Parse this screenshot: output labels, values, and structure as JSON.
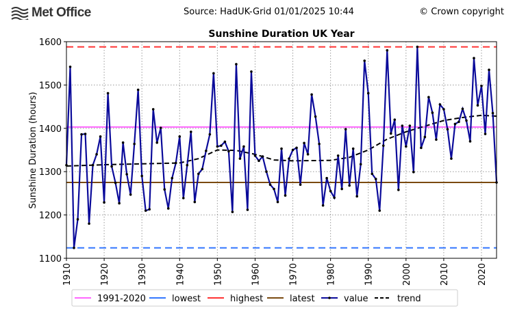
{
  "header": {
    "logo_text": "Met Office",
    "source": "Source: HadUK-Grid 01/01/2025 10:44",
    "copyright": "© Crown copyright"
  },
  "chart_data": {
    "type": "line",
    "title": "Sunshine Duration UK Year",
    "xlabel": "",
    "ylabel": "Sunshine Duration (hours)",
    "xlim": [
      1910,
      2024
    ],
    "ylim": [
      1100,
      1600
    ],
    "xticks": [
      "1910",
      "1920",
      "1930",
      "1940",
      "1950",
      "1960",
      "1970",
      "1980",
      "1990",
      "2000",
      "2010",
      "2020"
    ],
    "yticks": [
      "1100",
      "1200",
      "1300",
      "1400",
      "1500",
      "1600"
    ],
    "grid": true,
    "legend_placement": "bottom",
    "reference_lines": [
      {
        "name": "1991-2020",
        "value": 1403,
        "color": "#ff66ff",
        "style": "solid"
      },
      {
        "name": "lowest",
        "value": 1124,
        "color": "#3377ff",
        "style": "dashed"
      },
      {
        "name": "highest",
        "value": 1588,
        "color": "#ff3333",
        "style": "dashed"
      },
      {
        "name": "latest",
        "value": 1275,
        "color": "#7a4a10",
        "style": "solid"
      }
    ],
    "series": [
      {
        "name": "value",
        "color": "#0a0a9a",
        "x_start": 1910,
        "values": [
          1315,
          1542,
          1124,
          1190,
          1386,
          1387,
          1180,
          1315,
          1340,
          1381,
          1229,
          1481,
          1312,
          1274,
          1227,
          1367,
          1294,
          1247,
          1364,
          1489,
          1290,
          1210,
          1213,
          1444,
          1367,
          1401,
          1259,
          1215,
          1285,
          1320,
          1381,
          1239,
          1315,
          1392,
          1230,
          1295,
          1306,
          1348,
          1386,
          1527,
          1358,
          1360,
          1369,
          1347,
          1207,
          1548,
          1330,
          1358,
          1212,
          1531,
          1337,
          1325,
          1335,
          1300,
          1270,
          1260,
          1230,
          1353,
          1245,
          1330,
          1350,
          1355,
          1270,
          1366,
          1340,
          1478,
          1427,
          1364,
          1222,
          1285,
          1255,
          1240,
          1337,
          1260,
          1398,
          1268,
          1353,
          1243,
          1317,
          1556,
          1481,
          1295,
          1283,
          1210,
          1360,
          1580,
          1388,
          1420,
          1258,
          1406,
          1358,
          1406,
          1299,
          1588,
          1355,
          1380,
          1472,
          1436,
          1374,
          1455,
          1444,
          1398,
          1330,
          1410,
          1415,
          1445,
          1418,
          1370,
          1562,
          1453,
          1498,
          1387,
          1535,
          1435,
          1275
        ]
      },
      {
        "name": "trend",
        "color": "#000000",
        "x": [
          1910,
          1920,
          1930,
          1940,
          1945,
          1950,
          1955,
          1960,
          1965,
          1970,
          1980,
          1985,
          1990,
          1995,
          2000,
          2005,
          2010,
          2015,
          2020,
          2024
        ],
        "values": [
          1313,
          1316,
          1318,
          1320,
          1330,
          1350,
          1349,
          1340,
          1327,
          1325,
          1326,
          1333,
          1350,
          1375,
          1392,
          1405,
          1418,
          1425,
          1430,
          1428
        ]
      }
    ]
  }
}
